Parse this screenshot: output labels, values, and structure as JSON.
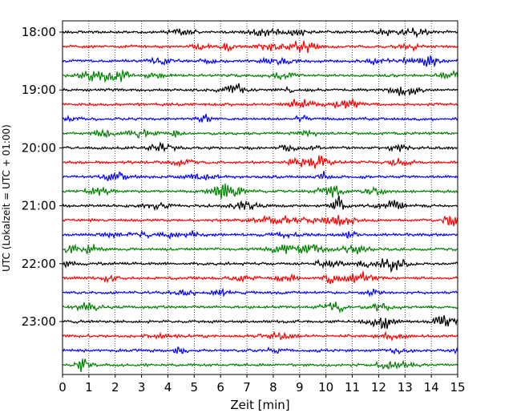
{
  "chart_data": {
    "type": "line",
    "title": "",
    "xlabel": "Zeit  [min]",
    "ylabel": "UTC (Lokalzeit = UTC + 01:00)",
    "xlim": [
      0,
      15
    ],
    "x_ticks": [
      "0",
      "1",
      "2",
      "3",
      "4",
      "5",
      "6",
      "7",
      "8",
      "9",
      "10",
      "11",
      "12",
      "13",
      "14",
      "15"
    ],
    "y_tick_labels": [
      "18:00",
      "19:00",
      "20:00",
      "21:00",
      "22:00",
      "23:00"
    ],
    "traces_per_hour": 4,
    "trace_start": "18:00",
    "trace_count": 24,
    "trace_duration_min": 15,
    "colors": [
      "#000000",
      "#ff0000",
      "#0000ff",
      "#008000"
    ],
    "vertical_grid": "dotted",
    "legend": "none",
    "series": [
      {
        "start": "18:00",
        "color": "#000000"
      },
      {
        "start": "18:15",
        "color": "#ff0000"
      },
      {
        "start": "18:30",
        "color": "#0000ff"
      },
      {
        "start": "18:45",
        "color": "#008000"
      },
      {
        "start": "19:00",
        "color": "#000000"
      },
      {
        "start": "19:15",
        "color": "#ff0000"
      },
      {
        "start": "19:30",
        "color": "#0000ff"
      },
      {
        "start": "19:45",
        "color": "#008000"
      },
      {
        "start": "20:00",
        "color": "#000000"
      },
      {
        "start": "20:15",
        "color": "#ff0000"
      },
      {
        "start": "20:30",
        "color": "#0000ff"
      },
      {
        "start": "20:45",
        "color": "#008000"
      },
      {
        "start": "21:00",
        "color": "#000000"
      },
      {
        "start": "21:15",
        "color": "#ff0000"
      },
      {
        "start": "21:30",
        "color": "#0000ff"
      },
      {
        "start": "21:45",
        "color": "#008000"
      },
      {
        "start": "22:00",
        "color": "#000000"
      },
      {
        "start": "22:15",
        "color": "#ff0000"
      },
      {
        "start": "22:30",
        "color": "#0000ff"
      },
      {
        "start": "22:45",
        "color": "#008000"
      },
      {
        "start": "23:00",
        "color": "#000000"
      },
      {
        "start": "23:15",
        "color": "#ff0000"
      },
      {
        "start": "23:30",
        "color": "#0000ff"
      },
      {
        "start": "23:45",
        "color": "#008000"
      }
    ]
  }
}
